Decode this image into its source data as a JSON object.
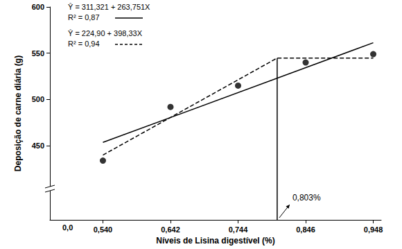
{
  "chart_data": {
    "type": "scatter",
    "xlabel": "Níveis de Lisina digestível (%)",
    "ylabel": "Deposição de carne diária (g)",
    "x": [
      0.54,
      0.642,
      0.744,
      0.846,
      0.948
    ],
    "values": [
      434,
      492,
      515,
      540,
      549
    ],
    "color": "#000000",
    "marker": "circle",
    "lines": [
      {
        "name_lines": [
          "Ŷ = 311,321 + 263,751X",
          "R² = 0,87"
        ],
        "x": [
          0.54,
          0.948
        ],
        "values": [
          453.7,
          561.3
        ],
        "color": "#000000",
        "line_style": "solid"
      },
      {
        "name_lines": [
          "Ŷ = 224,90 + 398,33X",
          "R² = 0,94"
        ],
        "x": [
          0.54,
          0.803,
          0.948
        ],
        "values": [
          440.0,
          544.8,
          544.8
        ],
        "color": "#000000",
        "line_style": "dashed"
      }
    ],
    "reference_line": {
      "x": [
        0.803,
        0.803
      ],
      "values": [
        370,
        544.8
      ],
      "color": "#000000",
      "line_style": "solid"
    },
    "annotations": [
      {
        "text": "0,803%",
        "x": 0.803,
        "y": 370
      }
    ],
    "x_break_label": "0,0",
    "xlim": [
      0.46,
      0.96
    ],
    "xticks": [
      {
        "value": 0.54,
        "label": "0,540"
      },
      {
        "value": 0.642,
        "label": "0,642"
      },
      {
        "value": 0.744,
        "label": "0,744"
      },
      {
        "value": 0.846,
        "label": "0,846"
      },
      {
        "value": 0.948,
        "label": "0,948"
      }
    ],
    "ylim": [
      370,
      600
    ],
    "yticks": [
      450,
      500,
      550,
      600
    ],
    "grid": false,
    "legend": "upper left"
  }
}
